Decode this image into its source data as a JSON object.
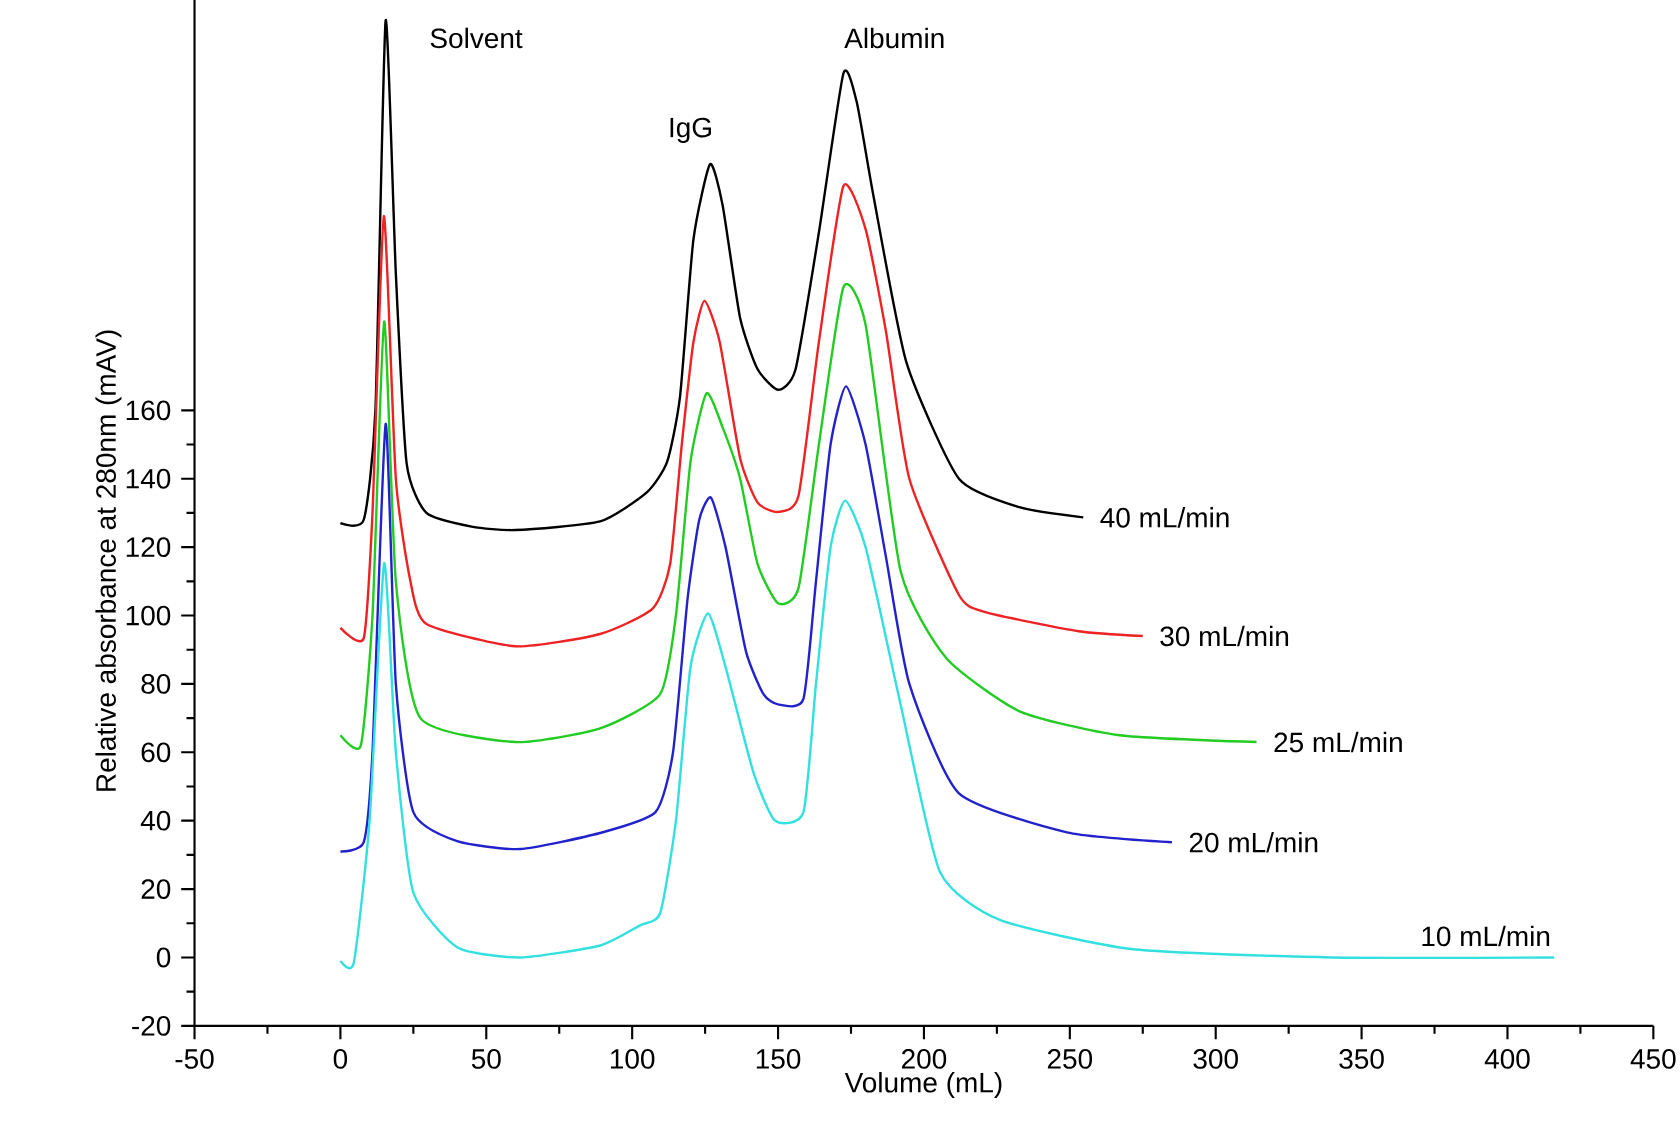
{
  "chart_data": {
    "type": "line",
    "xlabel": "Volume (mL)",
    "ylabel": "Relative absorbance at 280nm (mAV)",
    "xlim": [
      -50,
      450
    ],
    "xticks": [
      -50,
      0,
      50,
      100,
      150,
      200,
      250,
      300,
      350,
      400,
      450
    ],
    "ylim": [
      -20,
      280
    ],
    "yticks": [
      -20,
      0,
      20,
      40,
      60,
      80,
      100,
      120,
      140,
      160
    ],
    "grid": false,
    "legend": false,
    "marker": "none",
    "line_style": "solid",
    "annotations": [
      "Solvent",
      "IgG",
      "Albumin"
    ],
    "series": [
      {
        "name": "40 mL/min",
        "color": "#000000",
        "x": [
          0,
          8,
          12,
          15.5,
          19,
          22.7,
          29.5,
          45,
          60,
          89,
          105,
          112,
          116.4,
          121,
          126.7,
          131,
          137,
          143,
          150,
          156,
          164,
          172.4,
          177,
          182.7,
          194,
          212,
          233,
          254.6
        ],
        "values": [
          127,
          128,
          160,
          274,
          200,
          144.5,
          130,
          126,
          125,
          127.5,
          136,
          145,
          164,
          210,
          232,
          220,
          187,
          172,
          166,
          172,
          212,
          258.5,
          250,
          222.7,
          174,
          140,
          131.6,
          128.7
        ]
      },
      {
        "name": "30 mL/min",
        "color": "#ee2222",
        "x": [
          0,
          8,
          11,
          14.9,
          19,
          24,
          29.5,
          60,
          89,
          107,
          113,
          117,
          121,
          124.8,
          130,
          137,
          143,
          150,
          157,
          164,
          172.4,
          180,
          187,
          195,
          212,
          221,
          253,
          275
        ],
        "values": [
          96.4,
          93.4,
          130,
          216.8,
          140,
          110,
          97.5,
          91,
          94.6,
          102,
          115,
          150,
          180,
          192,
          180,
          146,
          133,
          130.3,
          135,
          180,
          225.6,
          213,
          183,
          140,
          106,
          101,
          95.4,
          94
        ]
      },
      {
        "name": "25 mL/min",
        "color": "#22cc22",
        "x": [
          0,
          7,
          11,
          15,
          19,
          27.4,
          60,
          89,
          109.6,
          115,
          120,
          125.5,
          131,
          137,
          143,
          150,
          157,
          164,
          172.4,
          180,
          192,
          207.7,
          233,
          267,
          314
        ],
        "values": [
          65,
          62,
          100,
          186,
          110,
          70,
          63,
          67,
          77,
          100,
          145,
          165,
          155,
          140,
          115,
          103.6,
          108,
          150,
          196,
          185,
          113,
          87.5,
          71.9,
          65,
          63
        ]
      },
      {
        "name": "20 mL/min",
        "color": "#2222cc",
        "x": [
          0,
          8,
          11,
          15.5,
          19,
          25,
          40,
          61.6,
          89,
          108,
          114,
          119,
          123,
          127,
          132,
          139,
          145,
          150,
          158.7,
          163,
          168,
          173.3,
          180,
          187,
          195,
          212,
          249,
          285
        ],
        "values": [
          31,
          33.7,
          60,
          156,
          80,
          42.5,
          34,
          31.7,
          36.4,
          42.5,
          60,
          105,
          128,
          134.5,
          120,
          89.5,
          77,
          74,
          75.6,
          110,
          150,
          167,
          150,
          117,
          80,
          48,
          36.6,
          33.7
        ]
      },
      {
        "name": "10 mL/min",
        "color": "#33e0e0",
        "x": [
          0,
          4.6,
          10,
          15,
          19,
          25,
          40,
          61.6,
          89,
          102.7,
          109.6,
          115,
          120,
          126,
          132,
          141.6,
          149,
          158.7,
          163,
          168,
          173,
          180,
          192,
          205.5,
          226,
          271.7,
          340,
          416
        ],
        "values": [
          -1,
          -1.5,
          40,
          115.3,
          60,
          19,
          3,
          0,
          3.5,
          9.4,
          13,
          40,
          85,
          100.6,
          85,
          54,
          40,
          42.5,
          80,
          120,
          133.6,
          120,
          74,
          25,
          11,
          2.4,
          0,
          0
        ]
      }
    ]
  }
}
